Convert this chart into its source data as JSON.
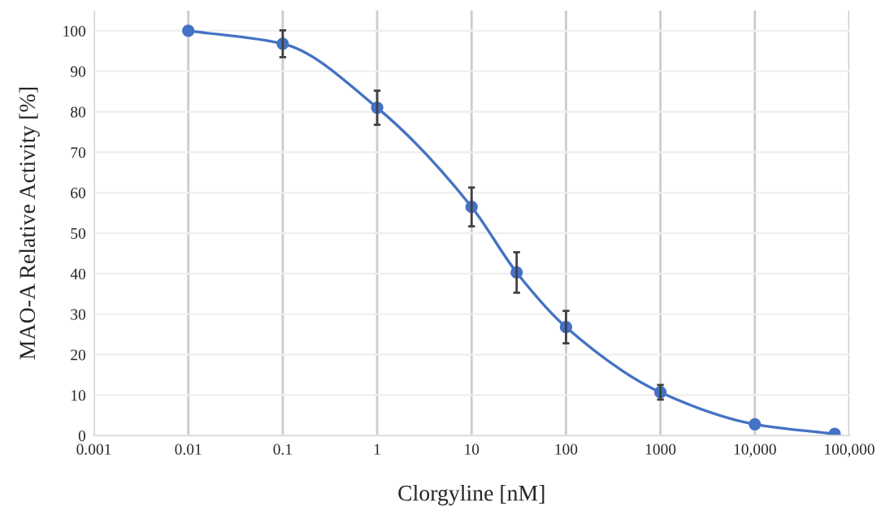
{
  "chart_data": {
    "type": "line",
    "xlabel": "Clorgyline [nM]",
    "ylabel": "MAO-A Relative Activity [%]",
    "log": "x",
    "grid": true,
    "marker": "circle",
    "line_style": "solid",
    "xlim": [
      0.001,
      100000
    ],
    "ylim": [
      0,
      105
    ],
    "xticks": [
      0.001,
      0.01,
      0.1,
      1,
      10,
      100,
      1000,
      {
        "value": 10000,
        "label": "10,000"
      },
      {
        "value": 100000,
        "label": "100,000"
      }
    ],
    "yticks": [
      0,
      10,
      20,
      30,
      40,
      50,
      60,
      70,
      80,
      90,
      100
    ],
    "series": [
      {
        "color": "#4472c4",
        "x": [
          0.01,
          0.1,
          1,
          10,
          30,
          100,
          1000,
          10000,
          70000
        ],
        "values": [
          100,
          96.8,
          81,
          56.5,
          40.3,
          26.8,
          10.7,
          2.8,
          0.4
        ],
        "errors": [
          null,
          3.3,
          4.2,
          4.8,
          5,
          4,
          1.8,
          null,
          null
        ]
      }
    ]
  }
}
